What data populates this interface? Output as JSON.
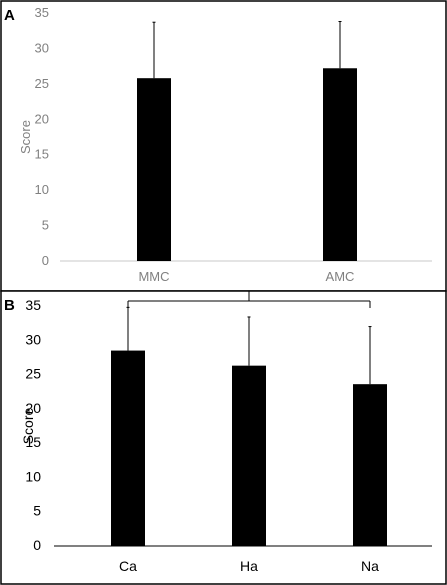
{
  "panels": [
    {
      "letter": "A"
    },
    {
      "letter": "B"
    }
  ],
  "chart_data": [
    {
      "type": "bar",
      "categories": [
        "MMC",
        "AMC"
      ],
      "values": [
        25.8,
        27.2
      ],
      "error_bars": [
        7.9,
        6.6
      ],
      "ylabel": "Score",
      "ylim": [
        0,
        35
      ],
      "yticks": [
        "0",
        "5",
        "10",
        "15",
        "20",
        "25",
        "30",
        "35"
      ],
      "grid": false,
      "bar_color": "#000000",
      "label_color": "#808080"
    },
    {
      "type": "bar",
      "categories": [
        "Ca",
        "Ha",
        "Na"
      ],
      "values": [
        28.5,
        26.3,
        23.6
      ],
      "error_bars": [
        6.3,
        7.1,
        8.4
      ],
      "ylabel": "Score",
      "ylim": [
        0,
        35
      ],
      "yticks": [
        "0",
        "5",
        "10",
        "15",
        "20",
        "25",
        "30",
        "35"
      ],
      "grid": false,
      "bar_color": "#000000",
      "label_color": "#000000"
    }
  ]
}
